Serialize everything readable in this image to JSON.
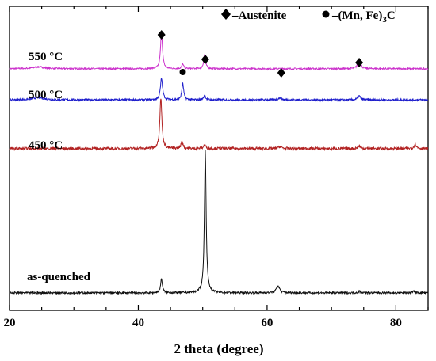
{
  "chart_data": {
    "type": "line",
    "xlabel": "2 theta (degree)",
    "ylabel": "",
    "xlim": [
      20,
      85
    ],
    "x_ticks": [
      "20",
      "40",
      "60",
      "80"
    ],
    "x_tick_values": [
      20,
      40,
      60,
      80
    ],
    "y_ticks": "none",
    "grid": false,
    "legend": {
      "placement": "top-right",
      "entries": [
        {
          "marker": "diamond",
          "prefix": "–",
          "label": "Austenite"
        },
        {
          "marker": "circle",
          "prefix": "–",
          "label": "(Mn, Fe)",
          "subscript": "3",
          "suffix": "C"
        }
      ]
    },
    "series": [
      {
        "name": "550 °C",
        "color": "#cc33cc",
        "baseline": 0.8,
        "noise": 0.02,
        "peaks": [
          {
            "x": 43.6,
            "height": 0.95,
            "width": 0.35
          },
          {
            "x": 46.9,
            "height": 0.12,
            "width": 0.35
          },
          {
            "x": 50.3,
            "height": 0.36,
            "width": 0.35
          },
          {
            "x": 74.3,
            "height": 0.25,
            "width": 0.5
          },
          {
            "x": 24.5,
            "height": 0.05,
            "width": 2.0
          }
        ],
        "markers": [
          {
            "type": "diamond",
            "x": 43.6
          },
          {
            "type": "circle",
            "x": 46.9
          },
          {
            "type": "diamond",
            "x": 50.4
          },
          {
            "type": "diamond",
            "x": 62.2
          },
          {
            "type": "diamond",
            "x": 74.3
          }
        ]
      },
      {
        "name": "500 °C",
        "color": "#1f1fcc",
        "baseline": 0.0,
        "noise": 0.025,
        "peaks": [
          {
            "x": 43.6,
            "height": 0.55,
            "width": 0.4
          },
          {
            "x": 46.9,
            "height": 0.42,
            "width": 0.35
          },
          {
            "x": 50.3,
            "height": 0.12,
            "width": 0.35
          },
          {
            "x": 62.0,
            "height": 0.05,
            "width": 0.6
          },
          {
            "x": 74.3,
            "height": 0.1,
            "width": 0.5
          },
          {
            "x": 24.5,
            "height": 0.06,
            "width": 2.0
          }
        ]
      },
      {
        "name": "450 °C",
        "color": "#b22222",
        "baseline": -1.25,
        "noise": 0.035,
        "peaks": [
          {
            "x": 43.5,
            "height": 1.3,
            "width": 0.38
          },
          {
            "x": 46.8,
            "height": 0.17,
            "width": 0.4
          },
          {
            "x": 50.3,
            "height": 0.1,
            "width": 0.4
          },
          {
            "x": 62.0,
            "height": 0.05,
            "width": 0.6
          },
          {
            "x": 74.3,
            "height": 0.06,
            "width": 0.5
          },
          {
            "x": 83.0,
            "height": 0.12,
            "width": 0.4
          }
        ]
      },
      {
        "name": "as-quenched",
        "color": "#111111",
        "baseline": -4.95,
        "noise": 0.025,
        "peaks": [
          {
            "x": 43.6,
            "height": 0.35,
            "width": 0.35
          },
          {
            "x": 50.4,
            "height": 3.65,
            "width": 0.32
          },
          {
            "x": 61.7,
            "height": 0.18,
            "width": 0.6
          },
          {
            "x": 74.4,
            "height": 0.04,
            "width": 0.5
          },
          {
            "x": 82.8,
            "height": 0.04,
            "width": 0.5
          }
        ]
      }
    ],
    "ylim": [
      -5.4,
      2.4
    ]
  },
  "colors": {
    "frame": "#000000",
    "marker": "#000000"
  }
}
